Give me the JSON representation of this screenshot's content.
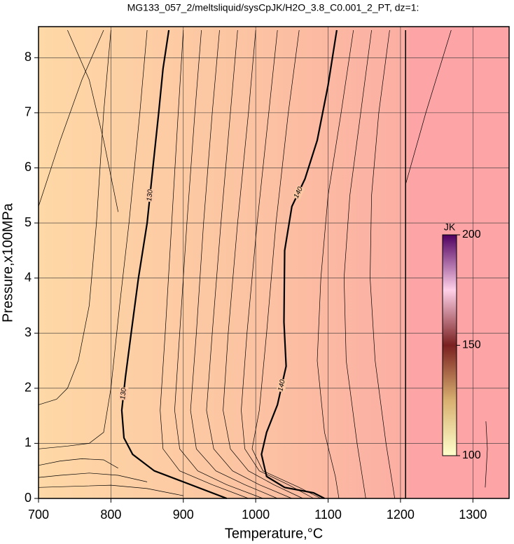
{
  "chart_data": {
    "type": "contour",
    "title": "MG133_057_2/meltsliquid/sysCpJK/H2O_3.8_C0.001_2_PT, dz=1:",
    "x_label": "Temperature,°C",
    "y_label": "Pressure,x100MPa",
    "xlim": [
      700,
      1350
    ],
    "ylim": [
      0,
      8.5
    ],
    "xticks": [
      700,
      800,
      900,
      1000,
      1100,
      1200,
      1300
    ],
    "yticks": [
      0,
      1,
      2,
      3,
      4,
      5,
      6,
      7,
      8
    ],
    "grid": true,
    "contours": [
      {
        "level": 130,
        "x": [
          880,
          872,
          866,
          858,
          850,
          838,
          828,
          820,
          815,
          818,
          830,
          860,
          900,
          960
        ],
        "y": [
          8.5,
          7.8,
          7,
          6,
          5,
          4,
          3,
          2.2,
          1.6,
          1.1,
          0.8,
          0.5,
          0.3,
          0
        ]
      },
      {
        "level": 140,
        "x": [
          1112,
          1100,
          1085,
          1068,
          1050,
          1040,
          1039,
          1042,
          1030,
          1015,
          1008,
          1015,
          1040,
          1080,
          1095
        ],
        "y": [
          8.5,
          7.5,
          6.5,
          5.8,
          5.3,
          4.5,
          3.2,
          2.4,
          1.7,
          1.2,
          0.8,
          0.4,
          0.2,
          0.1,
          0
        ]
      }
    ],
    "boundary": {
      "x": [
        1207,
        1207
      ],
      "y": [
        8.5,
        0
      ]
    },
    "thin_contours": [
      {
        "x": [
          700,
          730,
          760,
          790
        ],
        "y": [
          5.3,
          6.5,
          7.6,
          8.5
        ]
      },
      {
        "x": [
          740,
          770,
          790,
          810
        ],
        "y": [
          8.5,
          7.6,
          6.5,
          5.2
        ]
      },
      {
        "x": [
          800,
          790,
          780,
          770,
          755,
          740,
          725,
          700
        ],
        "y": [
          8.5,
          7,
          5,
          3.5,
          2.5,
          2,
          1.8,
          1.7
        ]
      },
      {
        "x": [
          850,
          840,
          825,
          812,
          800,
          790,
          770,
          740,
          700
        ],
        "y": [
          8.5,
          7,
          5,
          3.5,
          2,
          1.2,
          1.0,
          0.95,
          0.9
        ]
      },
      {
        "x": [
          810,
          790,
          760,
          730,
          700
        ],
        "y": [
          0.55,
          0.7,
          0.72,
          0.68,
          0.6
        ]
      },
      {
        "x": [
          850,
          810,
          770,
          730,
          700
        ],
        "y": [
          0.3,
          0.42,
          0.46,
          0.42,
          0.38
        ]
      },
      {
        "x": [
          900,
          850,
          800,
          750,
          700
        ],
        "y": [
          0.05,
          0.18,
          0.24,
          0.22,
          0.2
        ]
      },
      {
        "x": [
          900,
          893,
          884,
          875,
          868,
          872,
          895,
          940,
          990
        ],
        "y": [
          8.5,
          7,
          5,
          3,
          1.6,
          0.9,
          0.5,
          0.25,
          0
        ]
      },
      {
        "x": [
          925,
          916,
          905,
          895,
          888,
          895,
          920,
          960,
          1010
        ],
        "y": [
          8.5,
          7,
          5,
          3,
          1.6,
          0.9,
          0.5,
          0.25,
          0
        ]
      },
      {
        "x": [
          950,
          940,
          928,
          918,
          910,
          918,
          945,
          985,
          1030
        ],
        "y": [
          8.5,
          7,
          5,
          3,
          1.6,
          0.9,
          0.5,
          0.25,
          0
        ]
      },
      {
        "x": [
          975,
          965,
          952,
          940,
          932,
          942,
          968,
          1005,
          1050
        ],
        "y": [
          8.5,
          7,
          5,
          3,
          1.6,
          0.9,
          0.5,
          0.25,
          0
        ]
      },
      {
        "x": [
          1000,
          990,
          975,
          962,
          955,
          965,
          990,
          1025,
          1065
        ],
        "y": [
          8.5,
          7,
          5,
          3,
          1.6,
          0.9,
          0.5,
          0.25,
          0
        ]
      },
      {
        "x": [
          1030,
          1018,
          1002,
          988,
          980,
          985,
          1005,
          1045,
          1080
        ],
        "y": [
          8.5,
          7,
          5,
          3,
          1.6,
          0.9,
          0.5,
          0.25,
          0
        ]
      },
      {
        "x": [
          1060,
          1045,
          1028,
          1015,
          1005,
          995,
          1010,
          1060,
          1090
        ],
        "y": [
          8.5,
          7,
          5,
          3,
          1.6,
          0.9,
          0.5,
          0.2,
          0
        ]
      },
      {
        "x": [
          1135,
          1118,
          1100,
          1090,
          1085,
          1095,
          1110,
          1115
        ],
        "y": [
          8.5,
          7,
          5.5,
          4,
          2.5,
          1.2,
          0.4,
          0
        ]
      },
      {
        "x": [
          1160,
          1145,
          1130,
          1122,
          1125,
          1140,
          1152
        ],
        "y": [
          8.5,
          7,
          5.5,
          4,
          2.5,
          1,
          0
        ]
      },
      {
        "x": [
          1185,
          1170,
          1160,
          1158,
          1165,
          1180,
          1192
        ],
        "y": [
          8.5,
          7,
          5.5,
          4,
          2.5,
          1,
          0
        ]
      },
      {
        "x": [
          1207,
          1235,
          1270
        ],
        "y": [
          5.7,
          7,
          8.5
        ]
      },
      {
        "x": [
          1317,
          1320,
          1318
        ],
        "y": [
          0.2,
          0.9,
          1.4
        ]
      }
    ],
    "colorbar": {
      "label": "JK",
      "lim": [
        100,
        200
      ],
      "ticks": [
        100,
        150,
        200
      ]
    }
  }
}
